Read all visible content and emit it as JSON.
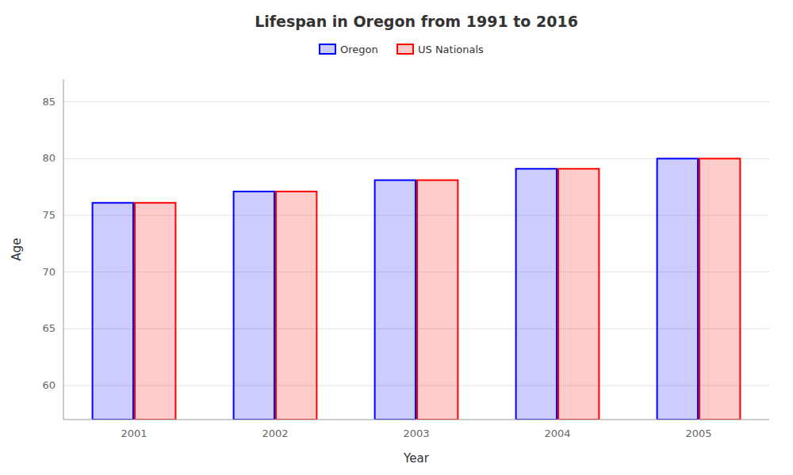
{
  "chart_data": {
    "type": "bar",
    "title": "Lifespan in Oregon from 1991 to 2016",
    "xlabel": "Year",
    "ylabel": "Age",
    "categories": [
      "2001",
      "2002",
      "2003",
      "2004",
      "2005"
    ],
    "series": [
      {
        "name": "Oregon",
        "color": "#0000ff",
        "values": [
          76.1,
          77.1,
          78.1,
          79.1,
          80.0
        ]
      },
      {
        "name": "US Nationals",
        "color": "#ff0000",
        "values": [
          76.1,
          77.1,
          78.1,
          79.1,
          80.0
        ]
      }
    ],
    "ylim": [
      57,
      87
    ],
    "yticks": [
      60,
      65,
      70,
      75,
      80,
      85
    ],
    "grid": true,
    "legend": "top"
  }
}
